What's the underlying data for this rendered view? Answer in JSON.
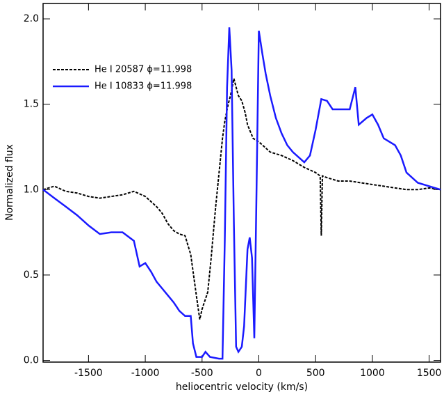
{
  "chart_data": {
    "type": "line",
    "xlabel": "heliocentric velocity (km/s)",
    "ylabel": "Normalized flux",
    "xlim": [
      -1900,
      1600
    ],
    "xticks": [
      -1500,
      -1000,
      -500,
      0,
      500,
      1000,
      1500
    ],
    "ylim": [
      -0.01,
      2.09
    ],
    "yticks": [
      {
        "value": 0,
        "label": "0.0"
      },
      {
        "value": 0.5,
        "label": "0.5"
      },
      {
        "value": 1,
        "label": "1.0"
      },
      {
        "value": 1.5,
        "label": "1.5"
      },
      {
        "value": 2,
        "label": "2.0"
      }
    ],
    "legend": "upper left",
    "series": [
      {
        "name": "He I 20587 ϕ=11.998",
        "color": "#000000",
        "dash": true,
        "x": [
          -1900,
          -1800,
          -1700,
          -1600,
          -1500,
          -1400,
          -1300,
          -1200,
          -1100,
          -1000,
          -950,
          -900,
          -850,
          -800,
          -750,
          -700,
          -650,
          -600,
          -550,
          -520,
          -500,
          -450,
          -420,
          -400,
          -380,
          -350,
          -320,
          -300,
          -270,
          -250,
          -220,
          -200,
          -180,
          -150,
          -120,
          -100,
          -50,
          0,
          50,
          100,
          200,
          300,
          400,
          500,
          540,
          550,
          560,
          600,
          700,
          800,
          900,
          1000,
          1100,
          1200,
          1300,
          1400,
          1500,
          1600
        ],
        "values": [
          1.0,
          1.02,
          0.99,
          0.98,
          0.96,
          0.95,
          0.96,
          0.97,
          0.99,
          0.96,
          0.93,
          0.9,
          0.86,
          0.8,
          0.76,
          0.74,
          0.73,
          0.62,
          0.38,
          0.24,
          0.3,
          0.4,
          0.6,
          0.75,
          0.9,
          1.1,
          1.3,
          1.4,
          1.5,
          1.55,
          1.65,
          1.6,
          1.55,
          1.52,
          1.45,
          1.38,
          1.3,
          1.28,
          1.25,
          1.22,
          1.2,
          1.17,
          1.13,
          1.1,
          1.08,
          0.73,
          1.08,
          1.07,
          1.05,
          1.05,
          1.04,
          1.03,
          1.02,
          1.01,
          1.0,
          1.0,
          1.01,
          1.0
        ]
      },
      {
        "name": "He I 10833 ϕ=11.998",
        "color": "#1a1aff",
        "dash": false,
        "x": [
          -1900,
          -1800,
          -1700,
          -1600,
          -1500,
          -1400,
          -1300,
          -1200,
          -1100,
          -1050,
          -1000,
          -950,
          -900,
          -850,
          -800,
          -750,
          -700,
          -650,
          -600,
          -580,
          -550,
          -500,
          -470,
          -430,
          -350,
          -320,
          -300,
          -280,
          -260,
          -240,
          -220,
          -200,
          -180,
          -150,
          -130,
          -100,
          -80,
          -60,
          -40,
          -20,
          0,
          30,
          60,
          100,
          150,
          200,
          250,
          300,
          400,
          450,
          500,
          550,
          600,
          650,
          700,
          800,
          850,
          880,
          950,
          1000,
          1050,
          1100,
          1200,
          1250,
          1300,
          1400,
          1500,
          1600
        ],
        "values": [
          1.0,
          0.95,
          0.9,
          0.85,
          0.79,
          0.74,
          0.75,
          0.75,
          0.7,
          0.55,
          0.57,
          0.52,
          0.46,
          0.42,
          0.38,
          0.34,
          0.29,
          0.26,
          0.26,
          0.1,
          0.02,
          0.02,
          0.05,
          0.02,
          0.01,
          0.01,
          0.7,
          1.6,
          1.95,
          1.7,
          0.8,
          0.08,
          0.05,
          0.08,
          0.2,
          0.65,
          0.72,
          0.6,
          0.13,
          1.0,
          1.93,
          1.8,
          1.68,
          1.55,
          1.42,
          1.33,
          1.26,
          1.22,
          1.16,
          1.2,
          1.35,
          1.53,
          1.52,
          1.47,
          1.47,
          1.47,
          1.6,
          1.38,
          1.42,
          1.44,
          1.38,
          1.3,
          1.26,
          1.2,
          1.1,
          1.04,
          1.02,
          1.0
        ]
      }
    ]
  }
}
